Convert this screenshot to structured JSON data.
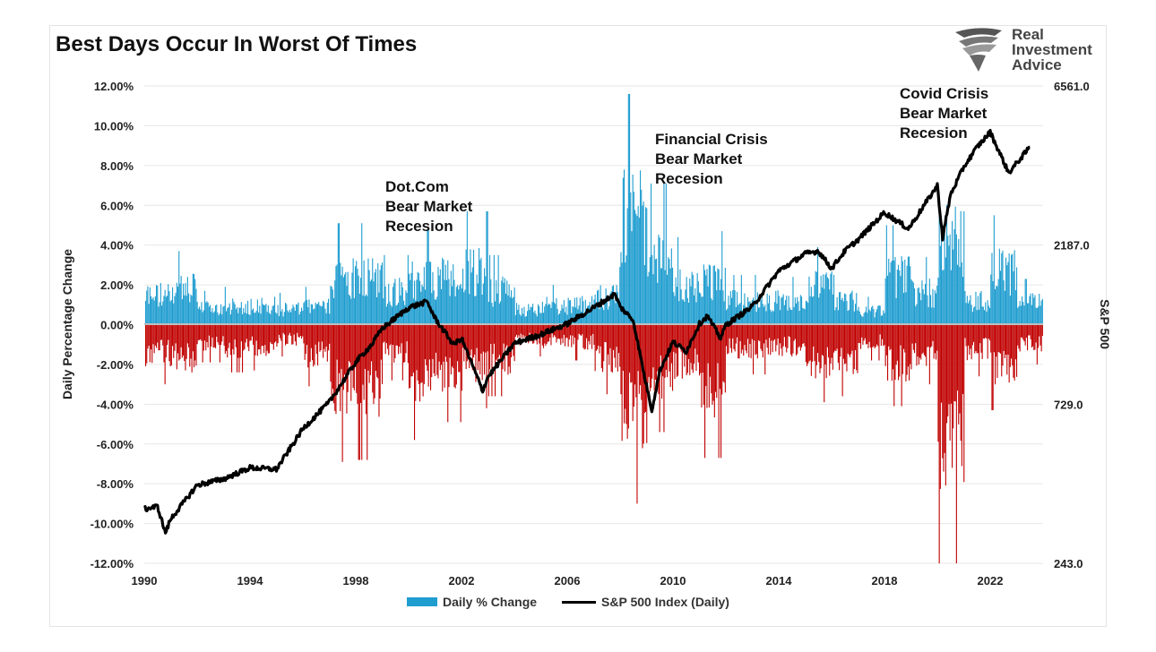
{
  "chart_data": {
    "type": "bar",
    "title": "Best Days Occur In Worst Of Times",
    "ylabel": "Daily Percentage Change",
    "y2label": "S&P 500",
    "ylim": [
      -12,
      12
    ],
    "y_ticks": [
      "12.00%",
      "10.00%",
      "8.00%",
      "6.00%",
      "4.00%",
      "2.00%",
      "0.00%",
      "-2.00%",
      "-4.00%",
      "-6.00%",
      "-8.00%",
      "-10.00%",
      "-12.00%"
    ],
    "y2_ticks": [
      "6561.0",
      "2187.0",
      "729.0",
      "243.0"
    ],
    "y2lim": [
      243,
      6561
    ],
    "y2_scale": "log",
    "x_ticks": [
      "1990",
      "1994",
      "1998",
      "2002",
      "2006",
      "2010",
      "2014",
      "2018",
      "2022"
    ],
    "xlim": [
      1990,
      2024
    ],
    "grid": true,
    "legend": "bottom",
    "colors": {
      "positive": "#1f9dcf",
      "negative": "#c00000",
      "index": "#000000"
    },
    "annotations": [
      {
        "lines": [
          "Dot.Com",
          "Bear Market",
          "Recesion"
        ]
      },
      {
        "lines": [
          "Financial Crisis",
          "Bear Market",
          "Recesion"
        ]
      },
      {
        "lines": [
          "Covid Crisis",
          "Bear Market",
          "Recesion"
        ]
      }
    ],
    "series": [
      {
        "name": "Daily % Change",
        "type": "bar",
        "note": "daily envelope by year (max up / max down, %)",
        "x": [
          1990,
          1991,
          1992,
          1993,
          1994,
          1995,
          1996,
          1997,
          1998,
          1999,
          2000,
          2001,
          2002,
          2003,
          2004,
          2005,
          2006,
          2007,
          2008,
          2009,
          2010,
          2011,
          2012,
          2013,
          2014,
          2015,
          2016,
          2017,
          2018,
          2019,
          2020,
          2021,
          2022,
          2023
        ],
        "max_up": [
          3.1,
          3.7,
          1.7,
          1.9,
          2.1,
          1.6,
          1.9,
          5.1,
          5.1,
          3.5,
          4.8,
          5.0,
          5.7,
          3.5,
          1.6,
          2.0,
          2.1,
          2.9,
          11.6,
          7.1,
          4.4,
          4.7,
          2.5,
          2.5,
          2.4,
          3.9,
          2.5,
          1.4,
          5.0,
          3.4,
          9.4,
          2.5,
          5.5,
          2.3
        ],
        "max_down": [
          -3.0,
          -3.7,
          -1.9,
          -2.4,
          -2.3,
          -1.6,
          -3.1,
          -6.9,
          -6.8,
          -2.8,
          -5.8,
          -4.9,
          -4.2,
          -3.6,
          -1.6,
          -1.7,
          -1.8,
          -3.5,
          -9.0,
          -5.4,
          -3.9,
          -6.7,
          -2.5,
          -2.5,
          -2.3,
          -3.9,
          -3.6,
          -1.8,
          -4.1,
          -3.0,
          -12.0,
          -2.6,
          -4.3,
          -2.0
        ]
      },
      {
        "name": "S&P 500 Index (Daily)",
        "type": "line",
        "x": [
          1990.0,
          1990.5,
          1990.8,
          1991.0,
          1992.0,
          1993.0,
          1994.0,
          1995.0,
          1996.0,
          1997.0,
          1998.0,
          1998.6,
          1999.0,
          2000.0,
          2000.7,
          2001.0,
          2001.7,
          2002.0,
          2002.8,
          2003.0,
          2004.0,
          2005.0,
          2006.0,
          2007.0,
          2007.8,
          2008.0,
          2008.5,
          2008.9,
          2009.2,
          2009.5,
          2010.0,
          2010.5,
          2011.0,
          2011.3,
          2011.8,
          2012.0,
          2013.0,
          2014.0,
          2015.0,
          2015.5,
          2016.0,
          2016.5,
          2017.0,
          2018.0,
          2018.9,
          2019.0,
          2020.0,
          2020.2,
          2020.5,
          2021.0,
          2021.5,
          2022.0,
          2022.7,
          2023.0,
          2023.5
        ],
        "values": [
          353,
          360,
          300,
          330,
          417,
          435,
          470,
          465,
          615,
          740,
          975,
          1100,
          1230,
          1420,
          1480,
          1320,
          1100,
          1150,
          800,
          880,
          1110,
          1180,
          1270,
          1420,
          1560,
          1430,
          1300,
          900,
          700,
          920,
          1120,
          1050,
          1270,
          1340,
          1150,
          1260,
          1430,
          1830,
          2060,
          2100,
          1860,
          2100,
          2270,
          2740,
          2450,
          2510,
          3300,
          2300,
          3100,
          3750,
          4300,
          4770,
          3600,
          3850,
          4300
        ]
      }
    ]
  }
}
